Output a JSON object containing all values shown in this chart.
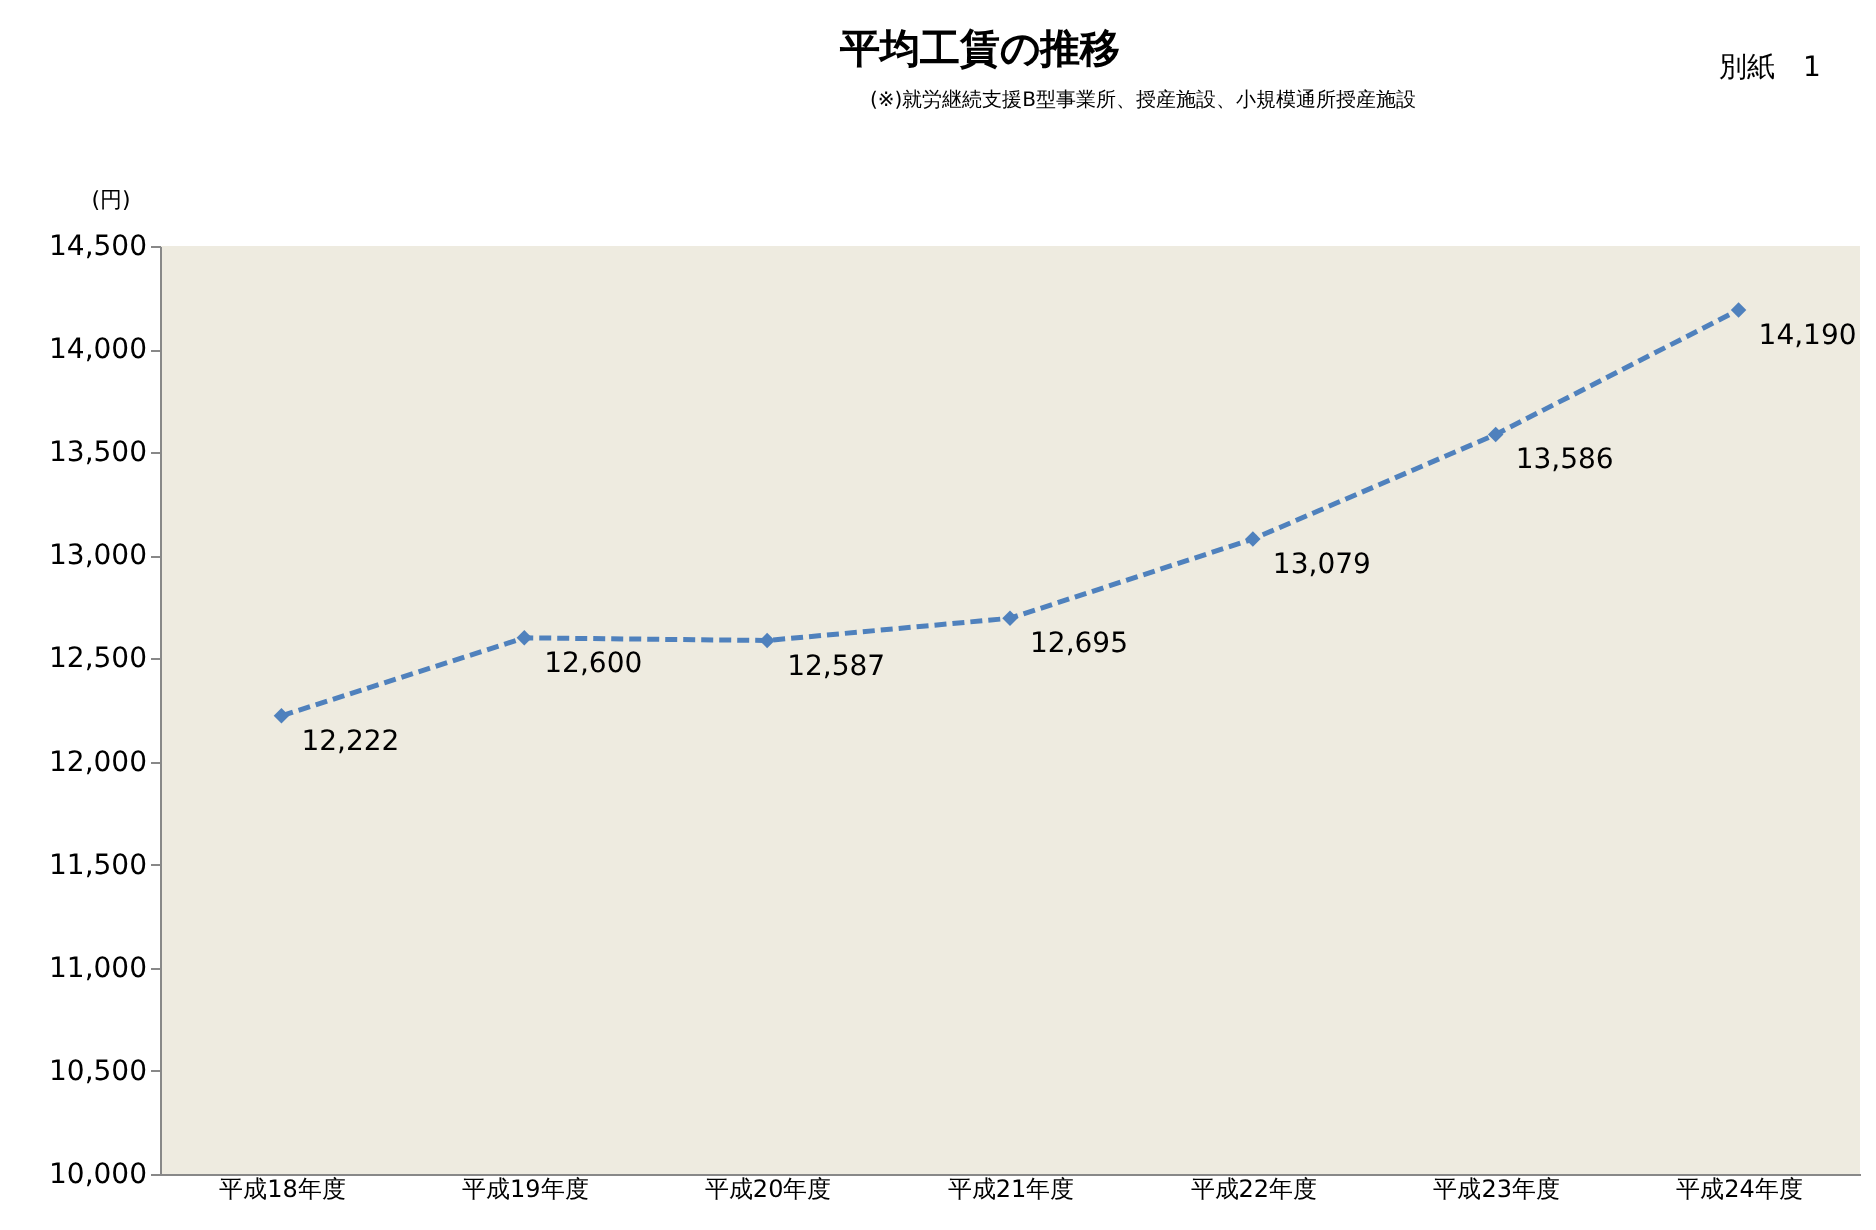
{
  "chart_data": {
    "type": "line",
    "title": "平均工賃の推移",
    "subtitle": "(※)就労継続支援B型事業所、授産施設、小規模通所授産施設",
    "ylabel": "(円)",
    "annotations": [
      "別紙　1"
    ],
    "categories": [
      "平成18年度",
      "平成19年度",
      "平成20年度",
      "平成21年度",
      "平成22年度",
      "平成23年度",
      "平成24年度"
    ],
    "series": [
      {
        "color": "#4f81bd",
        "values": [
          12222,
          12600,
          12587,
          12695,
          13079,
          13586,
          14190
        ],
        "value_labels": [
          "12,222",
          "12,600",
          "12,587",
          "12,695",
          "13,079",
          "13,586",
          "14,190"
        ]
      }
    ],
    "ylim": [
      10000,
      14500
    ],
    "yticks": [
      {
        "value": 10000,
        "label": "10,000"
      },
      {
        "value": 10500,
        "label": "10,500"
      },
      {
        "value": 11000,
        "label": "11,000"
      },
      {
        "value": 11500,
        "label": "11,500"
      },
      {
        "value": 12000,
        "label": "12,000"
      },
      {
        "value": 12500,
        "label": "12,500"
      },
      {
        "value": 13000,
        "label": "13,000"
      },
      {
        "value": 13500,
        "label": "13,500"
      },
      {
        "value": 14000,
        "label": "14,000"
      },
      {
        "value": 14500,
        "label": "14,500"
      }
    ],
    "grid": false,
    "marker": "diamond",
    "line_style": "dashed"
  }
}
